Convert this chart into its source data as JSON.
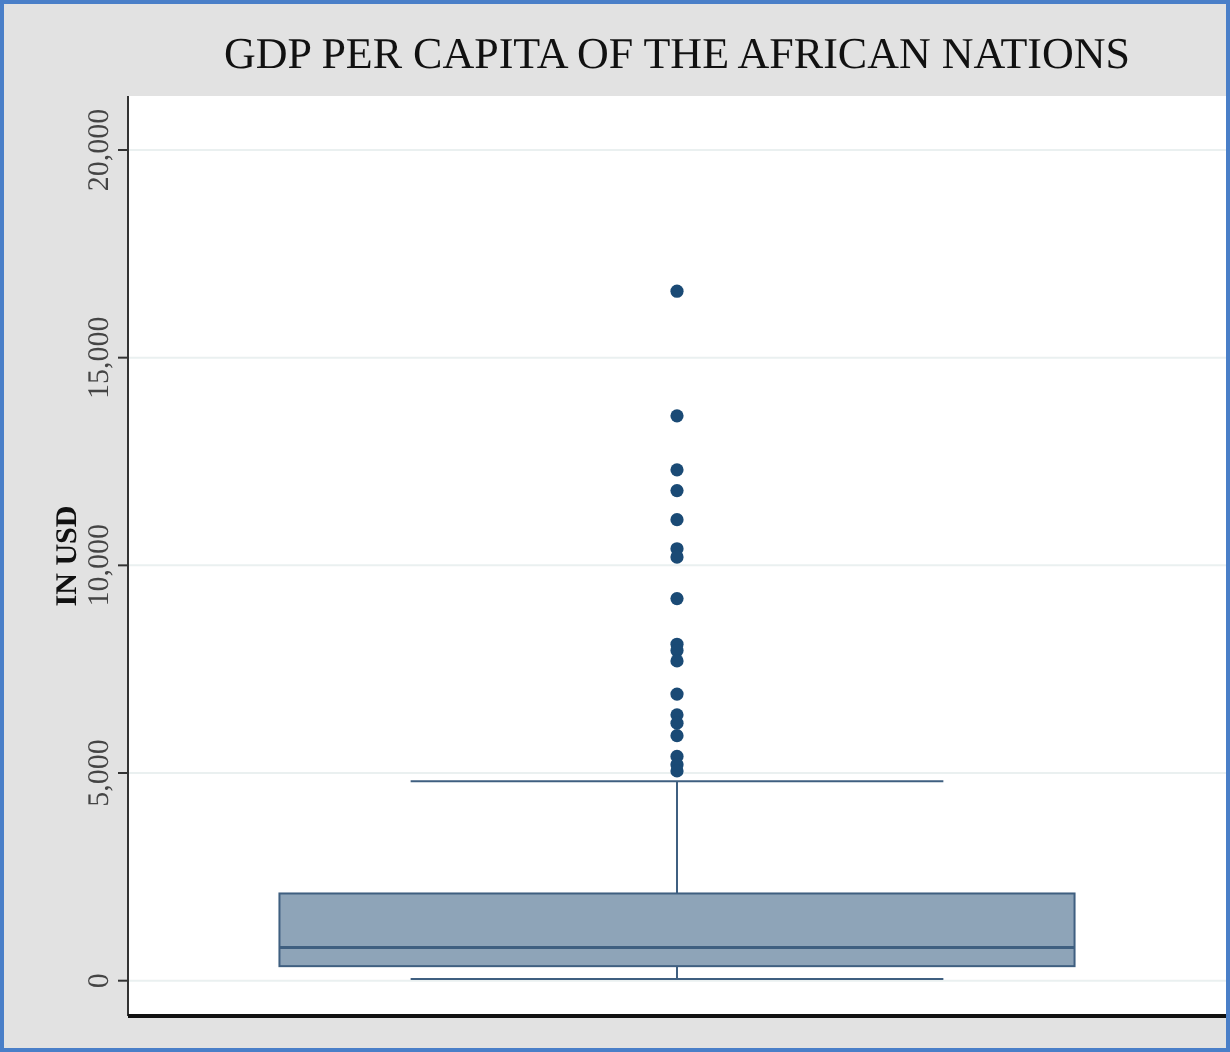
{
  "chart_data": {
    "type": "box",
    "title": "GDP PER CAPITA OF THE AFRICAN NATIONS",
    "ylabel": "IN USD",
    "categories": [
      null
    ],
    "boxes": [
      {
        "low": 40,
        "q1": 350,
        "median": 800,
        "q3": 2100,
        "high": 4800,
        "outliers": [
          16600,
          13600,
          12300,
          11800,
          11100,
          10400,
          10200,
          9200,
          8100,
          7950,
          7700,
          6900,
          6400,
          6200,
          5900,
          5400,
          5200,
          5050
        ]
      }
    ],
    "color": "#8ea4b8",
    "ylim": [
      -850,
      21300
    ],
    "yticks": [
      {
        "value": 0,
        "label": "0"
      },
      {
        "value": 5000,
        "label": "5,000"
      },
      {
        "value": 10000,
        "label": "10,000"
      },
      {
        "value": 15000,
        "label": "15,000"
      },
      {
        "value": 20000,
        "label": "20,000"
      }
    ],
    "grid": "y"
  }
}
